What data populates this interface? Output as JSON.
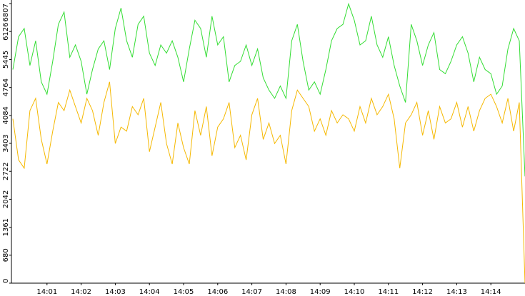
{
  "chart_data": {
    "type": "line",
    "x": [
      "14:00:00",
      "14:00:10",
      "14:00:20",
      "14:00:30",
      "14:00:40",
      "14:00:50",
      "14:01:00",
      "14:01:10",
      "14:01:20",
      "14:01:30",
      "14:01:40",
      "14:01:50",
      "14:02:00",
      "14:02:10",
      "14:02:20",
      "14:02:30",
      "14:02:40",
      "14:02:50",
      "14:03:00",
      "14:03:10",
      "14:03:20",
      "14:03:30",
      "14:03:40",
      "14:03:50",
      "14:04:00",
      "14:04:10",
      "14:04:20",
      "14:04:30",
      "14:04:40",
      "14:04:50",
      "14:05:00",
      "14:05:10",
      "14:05:20",
      "14:05:30",
      "14:05:40",
      "14:05:50",
      "14:06:00",
      "14:06:10",
      "14:06:20",
      "14:06:30",
      "14:06:40",
      "14:06:50",
      "14:07:00",
      "14:07:10",
      "14:07:20",
      "14:07:30",
      "14:07:40",
      "14:07:50",
      "14:08:00",
      "14:08:10",
      "14:08:20",
      "14:08:30",
      "14:08:40",
      "14:08:50",
      "14:09:00",
      "14:09:10",
      "14:09:20",
      "14:09:30",
      "14:09:40",
      "14:09:50",
      "14:10:00",
      "14:10:10",
      "14:10:20",
      "14:10:30",
      "14:10:40",
      "14:10:50",
      "14:11:00",
      "14:11:10",
      "14:11:20",
      "14:11:30",
      "14:11:40",
      "14:11:50",
      "14:12:00",
      "14:12:10",
      "14:12:20",
      "14:12:30",
      "14:12:40",
      "14:12:50",
      "14:13:00",
      "14:13:10",
      "14:13:20",
      "14:13:30",
      "14:13:40",
      "14:13:50",
      "14:14:00",
      "14:14:10",
      "14:14:20",
      "14:14:30",
      "14:14:40",
      "14:14:50",
      "14:15:00"
    ],
    "series": [
      {
        "color": "#33dd33",
        "values": [
          5200,
          6000,
          6200,
          5300,
          5900,
          4900,
          4600,
          5400,
          6300,
          6600,
          5500,
          5800,
          5400,
          4600,
          5200,
          5700,
          5900,
          5200,
          6200,
          6700,
          5900,
          5500,
          6300,
          6500,
          5600,
          5300,
          5800,
          5600,
          5900,
          5500,
          4900,
          5700,
          6400,
          6200,
          5500,
          6500,
          5800,
          6000,
          4900,
          5300,
          5400,
          5800,
          5300,
          5700,
          5000,
          4700,
          4500,
          4800,
          4500,
          5900,
          6300,
          5400,
          4700,
          4900,
          4600,
          5200,
          5900,
          6200,
          6300,
          6800,
          6400,
          5800,
          5900,
          6500,
          5800,
          5500,
          6000,
          5300,
          4800,
          4400,
          6300,
          5900,
          5300,
          5800,
          6100,
          5200,
          5100,
          5400,
          5800,
          6000,
          5600,
          4900,
          5500,
          5200,
          5100,
          4600,
          4800,
          5700,
          6200,
          5900,
          2600
        ]
      },
      {
        "color": "#f5b800",
        "values": [
          4000,
          3000,
          2800,
          4200,
          4500,
          3500,
          2900,
          3700,
          4400,
          4200,
          4700,
          4300,
          3900,
          4500,
          4200,
          3600,
          4400,
          4900,
          3400,
          3800,
          3700,
          4300,
          4100,
          4500,
          3200,
          3800,
          4400,
          3400,
          2900,
          3900,
          3300,
          2900,
          4200,
          3600,
          4300,
          3100,
          3800,
          4000,
          4400,
          3300,
          3600,
          3000,
          4100,
          4500,
          3500,
          3900,
          3400,
          3600,
          2900,
          4200,
          4700,
          4500,
          4300,
          3700,
          4000,
          3600,
          4200,
          3900,
          4100,
          4000,
          3700,
          4300,
          3900,
          4500,
          4100,
          4300,
          4600,
          4000,
          2800,
          3900,
          4100,
          4400,
          3600,
          4200,
          3500,
          4300,
          3900,
          4000,
          4400,
          3800,
          4300,
          3700,
          4200,
          4500,
          4600,
          4300,
          3900,
          4500,
          3700,
          4400,
          0
        ]
      }
    ],
    "xlim": [
      "14:00:00",
      "14:15:00"
    ],
    "xticks": [
      "14:01",
      "14:02",
      "14:03",
      "14:04",
      "14:05",
      "14:06",
      "14:07",
      "14:08",
      "14:09",
      "14:10",
      "14:11",
      "14:12",
      "14:13",
      "14:14"
    ],
    "ylim": [
      0,
      6807
    ],
    "yticks": [
      0,
      680,
      1361,
      2042,
      2722,
      3403,
      4084,
      4764,
      5445,
      6126,
      6807
    ]
  }
}
